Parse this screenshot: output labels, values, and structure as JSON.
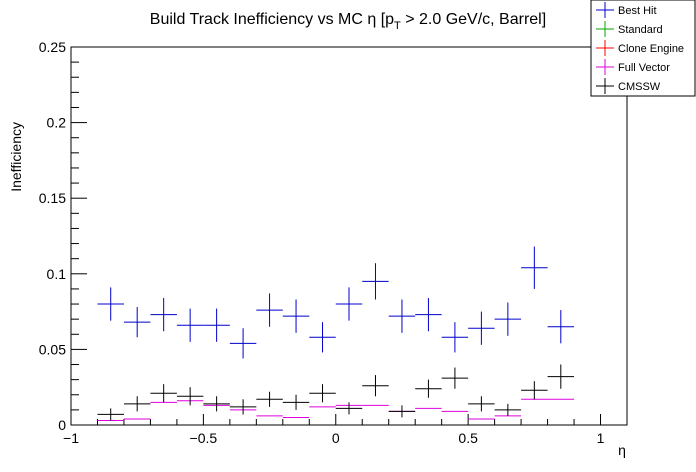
{
  "chart_data": {
    "type": "scatter",
    "title_main": "Build Track Inefficiency vs MC η [p",
    "title_sub": "T",
    "title_tail": " > 2.0 GeV/c, Barrel]",
    "xlabel": "η",
    "ylabel": "Inefficiency",
    "xlim": [
      -1.0,
      1.1
    ],
    "ylim": [
      0,
      0.25
    ],
    "xticks": [
      -1,
      -0.5,
      0,
      0.5,
      1
    ],
    "xtick_labels": [
      "−1",
      "−0.5",
      "0",
      "0.5",
      "1"
    ],
    "yticks": [
      0,
      0.05,
      0.1,
      0.15,
      0.2,
      0.25
    ],
    "ytick_labels": [
      "0",
      "0.05",
      "0.1",
      "0.15",
      "0.2",
      "0.25"
    ],
    "bin_half_width": 0.05,
    "legend_position": "top-right",
    "series": [
      {
        "name": "Best Hit",
        "color": "#0000cc",
        "x": [
          -0.85,
          -0.75,
          -0.65,
          -0.55,
          -0.45,
          -0.35,
          -0.25,
          -0.15,
          -0.05,
          0.05,
          0.15,
          0.25,
          0.35,
          0.45,
          0.55,
          0.65,
          0.75,
          0.85
        ],
        "y": [
          0.08,
          0.068,
          0.073,
          0.066,
          0.066,
          0.054,
          0.076,
          0.072,
          0.058,
          0.08,
          0.095,
          0.072,
          0.073,
          0.058,
          0.064,
          0.07,
          0.104,
          0.065
        ],
        "err": [
          0.011,
          0.01,
          0.011,
          0.011,
          0.011,
          0.01,
          0.011,
          0.011,
          0.01,
          0.011,
          0.012,
          0.011,
          0.011,
          0.01,
          0.011,
          0.011,
          0.014,
          0.011
        ]
      },
      {
        "name": "Standard",
        "color": "#00aa00",
        "x": [],
        "y": [],
        "err": []
      },
      {
        "name": "Clone Engine",
        "color": "#ff0000",
        "x": [],
        "y": [],
        "err": []
      },
      {
        "name": "Full Vector",
        "color": "#dd00dd",
        "x": [
          -0.85,
          -0.75,
          -0.65,
          -0.55,
          -0.45,
          -0.35,
          -0.25,
          -0.15,
          -0.05,
          0.05,
          0.15,
          0.25,
          0.35,
          0.45,
          0.55,
          0.65,
          0.75,
          0.85
        ],
        "y": [
          0.003,
          0.004,
          0.015,
          0.016,
          0.013,
          0.01,
          0.006,
          0.005,
          0.012,
          0.013,
          0.013,
          0.009,
          0.011,
          0.009,
          0.004,
          0.006,
          0.017,
          0.017
        ],
        "err": [
          0,
          0,
          0,
          0,
          0,
          0,
          0,
          0,
          0,
          0,
          0,
          0,
          0,
          0,
          0,
          0,
          0,
          0
        ]
      },
      {
        "name": "CMSSW",
        "color": "#000000",
        "x": [
          -0.85,
          -0.75,
          -0.65,
          -0.55,
          -0.45,
          -0.35,
          -0.25,
          -0.15,
          -0.05,
          0.05,
          0.15,
          0.25,
          0.35,
          0.45,
          0.55,
          0.65,
          0.75,
          0.85
        ],
        "y": [
          0.007,
          0.014,
          0.021,
          0.019,
          0.014,
          0.012,
          0.017,
          0.015,
          0.021,
          0.011,
          0.026,
          0.009,
          0.024,
          0.031,
          0.014,
          0.01,
          0.023,
          0.032
        ],
        "err": [
          0.004,
          0.005,
          0.006,
          0.006,
          0.005,
          0.005,
          0.005,
          0.005,
          0.006,
          0.004,
          0.007,
          0.004,
          0.006,
          0.007,
          0.005,
          0.004,
          0.006,
          0.008
        ]
      }
    ]
  }
}
